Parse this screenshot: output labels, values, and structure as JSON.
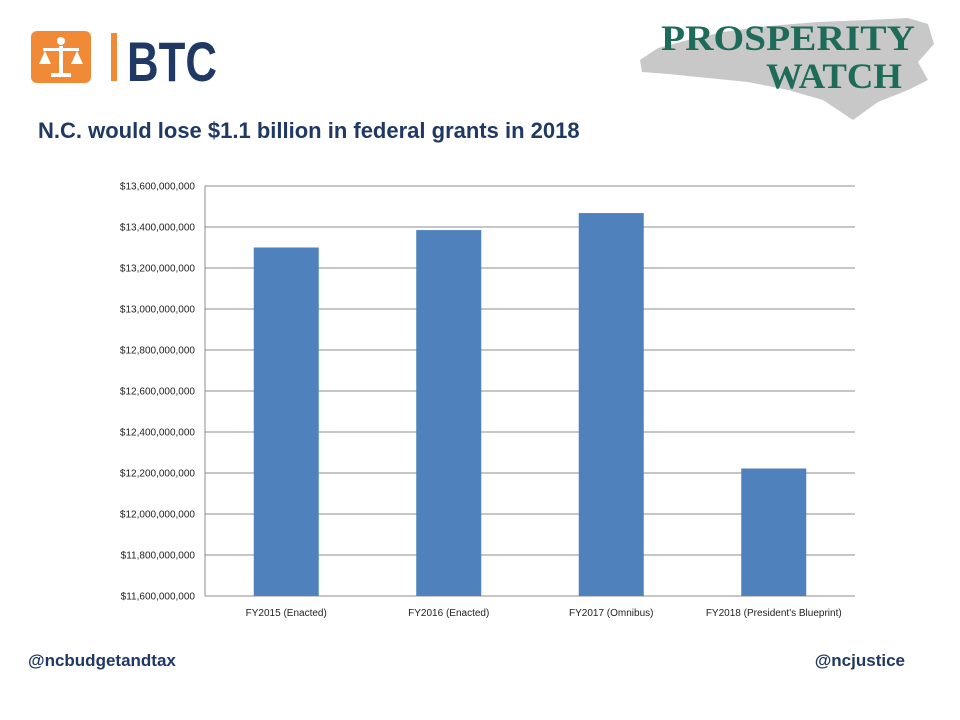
{
  "brand": {
    "btc_text": "BTC",
    "pw_line1": "PROSPERITY",
    "pw_line2": "WATCH",
    "orange": "#f08a36",
    "navy": "#1f3864",
    "teal": "#1d6b58"
  },
  "title": "N.C. would lose $1.1 billion in federal grants in 2018",
  "footer": {
    "left_handle": "@ncbudgetandtax",
    "right_handle": "@ncjustice"
  },
  "chart_data": {
    "type": "bar",
    "categories": [
      "FY2015 (Enacted)",
      "FY2016 (Enacted)",
      "FY2017 (Omnibus)",
      "FY2018 (President's Blueprint)"
    ],
    "values": [
      13300000000,
      13385000000,
      13468000000,
      12222000000
    ],
    "ylim": [
      11600000000,
      13600000000
    ],
    "ytick_step": 200000000,
    "ytick_labels": [
      "$11,600,000,000",
      "$11,800,000,000",
      "$12,000,000,000",
      "$12,200,000,000",
      "$12,400,000,000",
      "$12,600,000,000",
      "$12,800,000,000",
      "$13,000,000,000",
      "$13,200,000,000",
      "$13,400,000,000",
      "$13,600,000,000"
    ],
    "grid": true,
    "bar_color": "#4f81bd",
    "title": "",
    "xlabel": "",
    "ylabel": ""
  }
}
